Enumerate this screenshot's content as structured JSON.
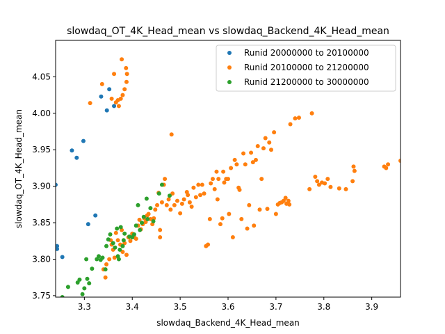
{
  "chart_data": {
    "type": "scatter",
    "title": "slowdaq_OT_4K_Head_mean vs slowdaq_Backend_4K_Head_mean",
    "xlabel": "slowdaq_Backend_4K_Head_mean",
    "ylabel": "slowdaq_OT_4K_Head_mean",
    "xlim": [
      3.24,
      3.96
    ],
    "ylim": [
      3.748,
      4.1
    ],
    "xticks": [
      "3.3",
      "3.4",
      "3.5",
      "3.6",
      "3.7",
      "3.8",
      "3.9"
    ],
    "yticks": [
      "3.75",
      "3.80",
      "3.85",
      "3.90",
      "3.95",
      "4.00",
      "4.05"
    ],
    "grid": false,
    "legend_position": "top-right",
    "series": [
      {
        "name": "Runid 20000000 to 20100000",
        "color": "#1f77b4",
        "points": [
          [
            3.24,
            3.902
          ],
          [
            3.243,
            3.818
          ],
          [
            3.243,
            3.814
          ],
          [
            3.254,
            3.803
          ],
          [
            3.274,
            3.949
          ],
          [
            3.284,
            3.939
          ],
          [
            3.298,
            3.962
          ],
          [
            3.308,
            3.848
          ],
          [
            3.323,
            3.86
          ],
          [
            3.335,
            4.023
          ],
          [
            3.347,
            4.004
          ],
          [
            3.352,
            4.033
          ],
          [
            3.362,
            4.01
          ]
        ]
      },
      {
        "name": "Runid 20100000 to 21200000",
        "color": "#ff7f0e",
        "points": [
          [
            3.312,
            4.014
          ],
          [
            3.337,
            4.04
          ],
          [
            3.357,
            4.02
          ],
          [
            3.362,
            4.054
          ],
          [
            3.366,
            4.015
          ],
          [
            3.37,
            4.018
          ],
          [
            3.372,
            4.01
          ],
          [
            3.376,
            4.02
          ],
          [
            3.38,
            4.025
          ],
          [
            3.378,
            4.074
          ],
          [
            3.384,
            4.033
          ],
          [
            3.387,
            4.062
          ],
          [
            3.389,
            4.054
          ],
          [
            3.388,
            4.043
          ],
          [
            3.482,
            3.971
          ],
          [
            3.34,
            3.786
          ],
          [
            3.344,
            3.775
          ],
          [
            3.346,
            3.793
          ],
          [
            3.352,
            3.8
          ],
          [
            3.355,
            3.826
          ],
          [
            3.357,
            3.82
          ],
          [
            3.36,
            3.813
          ],
          [
            3.363,
            3.802
          ],
          [
            3.366,
            3.836
          ],
          [
            3.37,
            3.826
          ],
          [
            3.375,
            3.82
          ],
          [
            3.378,
            3.84
          ],
          [
            3.38,
            3.81
          ],
          [
            3.384,
            3.822
          ],
          [
            3.388,
            3.806
          ],
          [
            3.392,
            3.83
          ],
          [
            3.396,
            3.825
          ],
          [
            3.4,
            3.835
          ],
          [
            3.404,
            3.83
          ],
          [
            3.408,
            3.828
          ],
          [
            3.412,
            3.846
          ],
          [
            3.415,
            3.854
          ],
          [
            3.418,
            3.841
          ],
          [
            3.422,
            3.848
          ],
          [
            3.425,
            3.856
          ],
          [
            3.428,
            3.851
          ],
          [
            3.431,
            3.86
          ],
          [
            3.434,
            3.862
          ],
          [
            3.438,
            3.855
          ],
          [
            3.442,
            3.848
          ],
          [
            3.445,
            3.856
          ],
          [
            3.448,
            3.868
          ],
          [
            3.452,
            3.874
          ],
          [
            3.455,
            3.891
          ],
          [
            3.458,
            3.84
          ],
          [
            3.458,
            3.83
          ],
          [
            3.462,
            3.878
          ],
          [
            3.466,
            3.902
          ],
          [
            3.468,
            3.91
          ],
          [
            3.472,
            3.874
          ],
          [
            3.476,
            3.882
          ],
          [
            3.48,
            3.868
          ],
          [
            3.484,
            3.89
          ],
          [
            3.488,
            3.874
          ],
          [
            3.494,
            3.88
          ],
          [
            3.5,
            3.863
          ],
          [
            3.504,
            3.876
          ],
          [
            3.508,
            3.882
          ],
          [
            3.514,
            3.892
          ],
          [
            3.516,
            3.888
          ],
          [
            3.52,
            3.878
          ],
          [
            3.524,
            3.872
          ],
          [
            3.528,
            3.898
          ],
          [
            3.533,
            3.885
          ],
          [
            3.538,
            3.902
          ],
          [
            3.542,
            3.888
          ],
          [
            3.546,
            3.902
          ],
          [
            3.55,
            3.89
          ],
          [
            3.554,
            3.818
          ],
          [
            3.558,
            3.82
          ],
          [
            3.562,
            3.855
          ],
          [
            3.564,
            3.904
          ],
          [
            3.568,
            3.91
          ],
          [
            3.572,
            3.896
          ],
          [
            3.576,
            3.92
          ],
          [
            3.578,
            3.882
          ],
          [
            3.58,
            3.91
          ],
          [
            3.584,
            3.848
          ],
          [
            3.588,
            3.856
          ],
          [
            3.59,
            3.92
          ],
          [
            3.592,
            3.905
          ],
          [
            3.596,
            3.91
          ],
          [
            3.6,
            3.91
          ],
          [
            3.602,
            3.862
          ],
          [
            3.606,
            3.925
          ],
          [
            3.61,
            3.83
          ],
          [
            3.614,
            3.936
          ],
          [
            3.618,
            3.93
          ],
          [
            3.622,
            3.898
          ],
          [
            3.624,
            3.895
          ],
          [
            3.628,
            3.855
          ],
          [
            3.632,
            3.945
          ],
          [
            3.636,
            3.93
          ],
          [
            3.64,
            3.842
          ],
          [
            3.644,
            3.874
          ],
          [
            3.648,
            3.946
          ],
          [
            3.652,
            3.933
          ],
          [
            3.654,
            3.846
          ],
          [
            3.658,
            3.936
          ],
          [
            3.662,
            3.955
          ],
          [
            3.666,
            3.868
          ],
          [
            3.67,
            3.91
          ],
          [
            3.674,
            3.952
          ],
          [
            3.678,
            3.966
          ],
          [
            3.682,
            3.869
          ],
          [
            3.686,
            3.96
          ],
          [
            3.69,
            3.95
          ],
          [
            3.696,
            3.974
          ],
          [
            3.7,
            3.862
          ],
          [
            3.704,
            3.875
          ],
          [
            3.708,
            3.877
          ],
          [
            3.712,
            3.878
          ],
          [
            3.716,
            3.88
          ],
          [
            3.72,
            3.884
          ],
          [
            3.722,
            3.876
          ],
          [
            3.726,
            3.88
          ],
          [
            3.728,
            3.875
          ],
          [
            3.73,
            3.985
          ],
          [
            3.74,
            3.993
          ],
          [
            3.748,
            3.994
          ],
          [
            3.77,
            3.896
          ],
          [
            3.775,
            4.0
          ],
          [
            3.782,
            3.913
          ],
          [
            3.786,
            3.907
          ],
          [
            3.79,
            3.902
          ],
          [
            3.796,
            3.905
          ],
          [
            3.802,
            3.904
          ],
          [
            3.808,
            3.91
          ],
          [
            3.814,
            3.899
          ],
          [
            3.832,
            3.897
          ],
          [
            3.846,
            3.896
          ],
          [
            3.86,
            3.907
          ],
          [
            3.862,
            3.927
          ],
          [
            3.864,
            3.921
          ],
          [
            3.926,
            3.927
          ],
          [
            3.93,
            3.925
          ],
          [
            3.934,
            3.93
          ],
          [
            3.96,
            3.935
          ]
        ]
      },
      {
        "name": "Runid 21200000 to 30000000",
        "color": "#2ca02c",
        "points": [
          [
            3.254,
            3.748
          ],
          [
            3.266,
            3.762
          ],
          [
            3.286,
            3.768
          ],
          [
            3.29,
            3.772
          ],
          [
            3.296,
            3.752
          ],
          [
            3.3,
            3.76
          ],
          [
            3.304,
            3.8
          ],
          [
            3.306,
            3.773
          ],
          [
            3.31,
            3.767
          ],
          [
            3.316,
            3.787
          ],
          [
            3.326,
            3.8
          ],
          [
            3.33,
            3.804
          ],
          [
            3.334,
            3.799
          ],
          [
            3.338,
            3.802
          ],
          [
            3.344,
            3.786
          ],
          [
            3.346,
            3.818
          ],
          [
            3.35,
            3.827
          ],
          [
            3.354,
            3.834
          ],
          [
            3.36,
            3.822
          ],
          [
            3.364,
            3.816
          ],
          [
            3.368,
            3.842
          ],
          [
            3.37,
            3.804
          ],
          [
            3.372,
            3.8
          ],
          [
            3.374,
            3.813
          ],
          [
            3.376,
            3.844
          ],
          [
            3.38,
            3.818
          ],
          [
            3.382,
            3.826
          ],
          [
            3.384,
            3.835
          ],
          [
            3.394,
            3.831
          ],
          [
            3.4,
            3.83
          ],
          [
            3.404,
            3.834
          ],
          [
            3.408,
            3.846
          ],
          [
            3.412,
            3.874
          ],
          [
            3.416,
            3.84
          ],
          [
            3.42,
            3.85
          ],
          [
            3.424,
            3.858
          ],
          [
            3.43,
            3.883
          ],
          [
            3.432,
            3.855
          ],
          [
            3.438,
            3.87
          ],
          [
            3.444,
            3.852
          ],
          [
            3.456,
            3.89
          ],
          [
            3.462,
            3.902
          ],
          [
            3.478,
            3.887
          ]
        ]
      }
    ]
  }
}
